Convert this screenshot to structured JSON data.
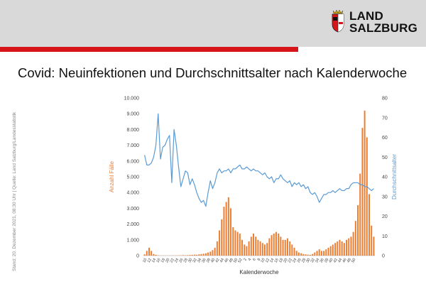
{
  "page": {
    "title": "Covid: Neuinfektionen und Durchschnittsalter nach Kalenderwoche",
    "side_note": "Stand: 20. Dezember  2021, 08:30 Uhr | Quelle: Land Salzburg/Landesstatistik"
  },
  "logo": {
    "line1": "LAND",
    "line2": "SALZBURG",
    "crest": "salzburg-coat-of-arms"
  },
  "colors": {
    "header": "#d9d9d9",
    "accent": "#d7141a",
    "bars": "#ed7d31",
    "line": "#5b9bd5"
  },
  "chart_data": {
    "type": "bar+line",
    "title": "",
    "xlabel": "Kalenderwoche",
    "y1label": "Anzahl Fälle",
    "y2label": "Durchschnittsalter",
    "y1lim": [
      0,
      10000
    ],
    "y2lim": [
      0,
      80
    ],
    "y1ticks": [
      "0",
      "1.000",
      "2.000",
      "3.000",
      "4.000",
      "5.000",
      "6.000",
      "7.000",
      "8.000",
      "9.000",
      "10.000"
    ],
    "y2ticks": [
      "0",
      "10",
      "20",
      "30",
      "40",
      "50",
      "60",
      "70",
      "80"
    ],
    "x_tick_labels": [
      "10",
      "12",
      "14",
      "16",
      "18",
      "20",
      "22",
      "24",
      "26",
      "28",
      "30",
      "32",
      "34",
      "36",
      "38",
      "40",
      "42",
      "44",
      "46",
      "48",
      "50",
      "52",
      "2",
      "4",
      "6",
      "8",
      "10",
      "12",
      "14",
      "16",
      "18",
      "20",
      "22",
      "24",
      "26",
      "28",
      "30",
      "32",
      "34",
      "36",
      "38",
      "40",
      "42",
      "44",
      "46",
      "48",
      "50"
    ],
    "series": [
      {
        "name": "Anzahl Fälle",
        "type": "bar",
        "values": [
          80,
          300,
          500,
          300,
          100,
          50,
          20,
          10,
          5,
          5,
          5,
          5,
          10,
          10,
          10,
          15,
          20,
          30,
          20,
          30,
          40,
          50,
          60,
          50,
          80,
          100,
          120,
          150,
          200,
          250,
          350,
          500,
          900,
          1600,
          2300,
          3100,
          3400,
          3700,
          3000,
          1800,
          1600,
          1500,
          1400,
          1000,
          700,
          600,
          900,
          1200,
          1400,
          1200,
          1000,
          900,
          800,
          700,
          800,
          1100,
          1300,
          1400,
          1500,
          1400,
          1200,
          1000,
          1000,
          1100,
          900,
          700,
          500,
          300,
          200,
          150,
          100,
          80,
          60,
          50,
          100,
          200,
          300,
          400,
          300,
          300,
          400,
          500,
          600,
          700,
          800,
          900,
          1000,
          900,
          800,
          1000,
          1100,
          1200,
          1500,
          2200,
          3200,
          5200,
          8100,
          9200,
          7500,
          3900,
          1900,
          1200
        ],
        "note": "weekly new infections, weeks 10/2020 through 50/2021 (values estimated from bar heights)"
      },
      {
        "name": "Durchschnittsalter",
        "type": "line",
        "axis": "right",
        "values": [
          51,
          46,
          46,
          47,
          50,
          56,
          72,
          49,
          55,
          56,
          59,
          61,
          37,
          64,
          56,
          45,
          35,
          39,
          43,
          42,
          36,
          39,
          36,
          32,
          29,
          27,
          28,
          25,
          32,
          38,
          34,
          37,
          42,
          44,
          42,
          43,
          43,
          44,
          42,
          44,
          44,
          45,
          46,
          44,
          44,
          45,
          44,
          43,
          44,
          43,
          43,
          42,
          41,
          42,
          40,
          39,
          40,
          37,
          39,
          39,
          41,
          39,
          38,
          37,
          38,
          35,
          37,
          36,
          37,
          35,
          36,
          34,
          35,
          32,
          31,
          32,
          30,
          27,
          29,
          31,
          31,
          32,
          32,
          33,
          32,
          33,
          34,
          33,
          33,
          34,
          34,
          36,
          37,
          37,
          37,
          36,
          36,
          35,
          35,
          34,
          33,
          34
        ],
        "note": "average age of cases per week (values estimated)"
      }
    ]
  }
}
